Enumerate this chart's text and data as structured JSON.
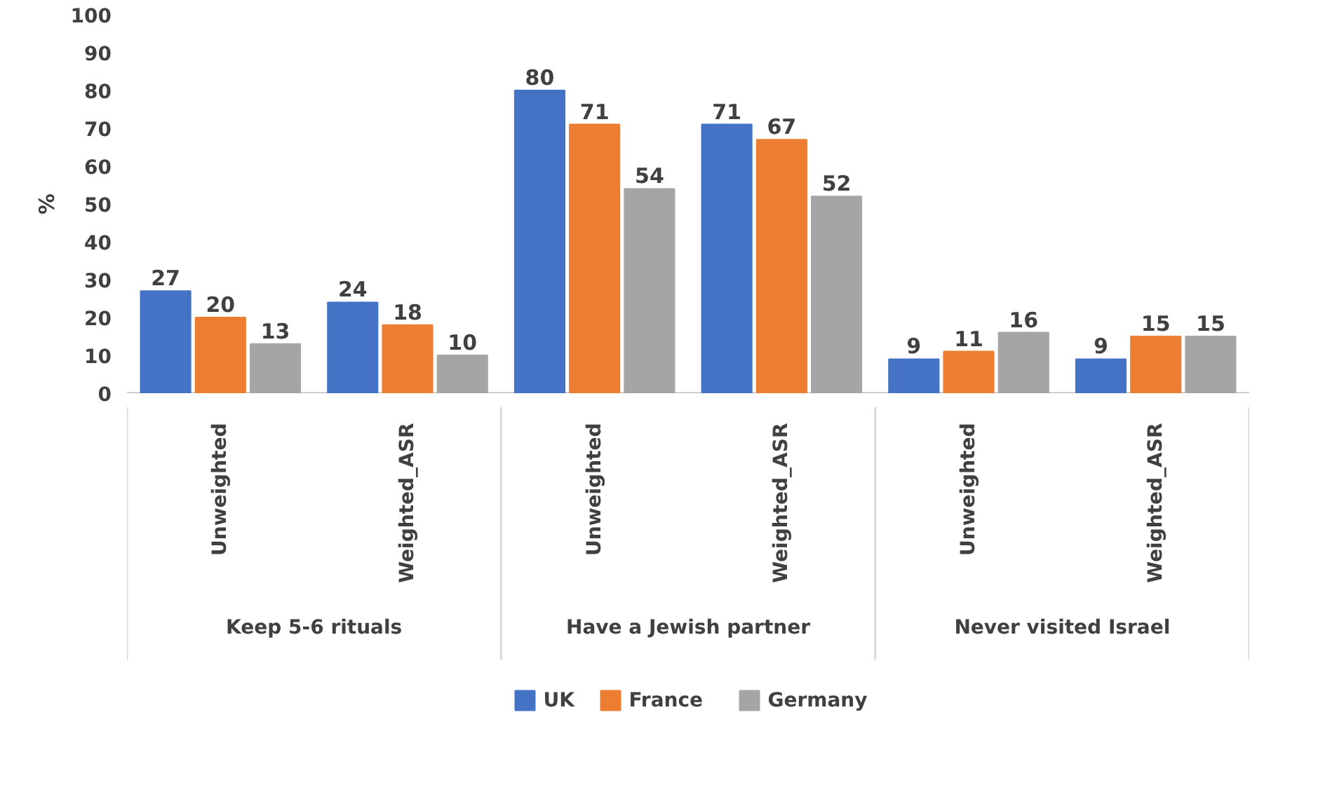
{
  "chart_data": {
    "type": "bar",
    "ylabel": "%",
    "categories": [
      "Unweighted",
      "Weighted_ASR",
      "Unweighted",
      "Weighted_ASR",
      "Unweighted",
      "Weighted_ASR"
    ],
    "annotations": [
      "Keep 5-6 rituals",
      "Have a Jewish partner",
      "Never visited Israel"
    ],
    "series": [
      {
        "name": "UK",
        "color": "#4472c4",
        "values": [
          27,
          24,
          80,
          71,
          9,
          9
        ]
      },
      {
        "name": "France",
        "color": "#ed7d31",
        "values": [
          20,
          18,
          71,
          67,
          11,
          15
        ]
      },
      {
        "name": "Germany",
        "color": "#a5a5a5",
        "values": [
          13,
          10,
          54,
          52,
          16,
          15
        ]
      }
    ],
    "ylim": [
      0,
      100
    ],
    "yticks": [
      0,
      10,
      20,
      30,
      40,
      50,
      60,
      70,
      80,
      90,
      100
    ],
    "data_labels": true,
    "grid": false,
    "legend": "bottom"
  }
}
